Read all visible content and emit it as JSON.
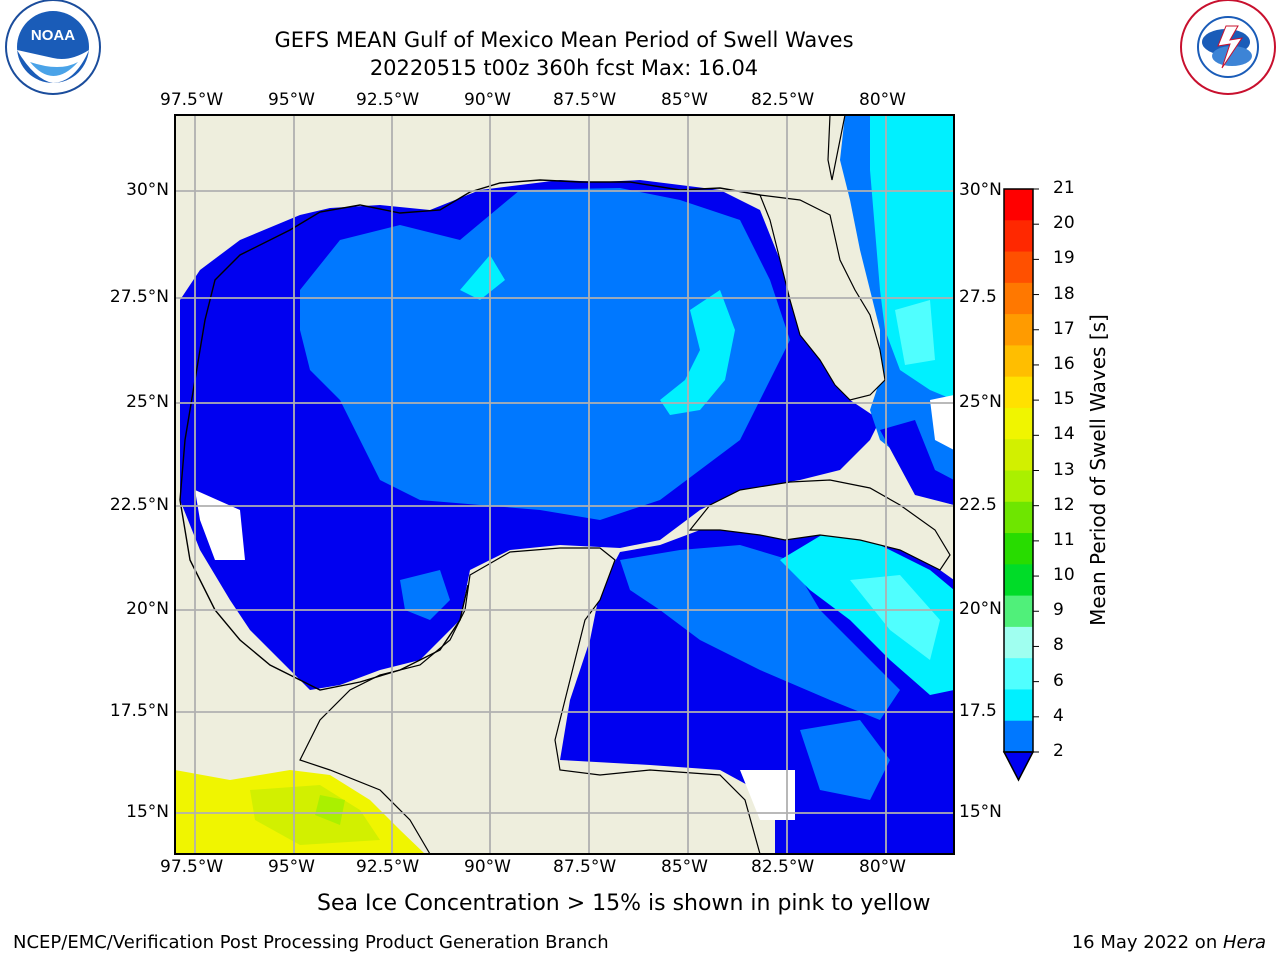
{
  "title": {
    "line1": "GEFS MEAN Gulf of Mexico Mean Period of Swell Waves",
    "line2": "20220515 t00z 360h fcst   Max: 16.04"
  },
  "map": {
    "lon_ticks": [
      "97.5°W",
      "95°W",
      "92.5°W",
      "90°W",
      "87.5°W",
      "85°W",
      "82.5°W",
      "80°W"
    ],
    "lat_ticks_left": [
      "30°N",
      "27.5°N",
      "25°N",
      "22.5°N",
      "20°N",
      "17.5°N",
      "15°N"
    ],
    "lat_ticks_right": [
      "30°N",
      "27.5",
      "25°N",
      "22.5",
      "20°N",
      "17.5",
      "15°N"
    ],
    "colors": {
      "land": "#eeeedd",
      "missing": "#ffffff",
      "grid": "#b0b0b0",
      "coast": "#000000"
    }
  },
  "colorbar": {
    "title": "Mean Period of Swell Waves [s]",
    "labels": [
      "21",
      "20",
      "19",
      "18",
      "17",
      "16",
      "15",
      "14",
      "13",
      "12",
      "11",
      "10",
      "9",
      "8",
      "6",
      "4",
      "2"
    ],
    "colors": [
      "#ff0000",
      "#ff2800",
      "#ff5000",
      "#ff7800",
      "#ff9b00",
      "#ffbe00",
      "#ffe100",
      "#f0f500",
      "#d2f000",
      "#aaf000",
      "#6ee600",
      "#28dc00",
      "#00dc28",
      "#50f07a",
      "#a0fff0",
      "#50ffff",
      "#00f0ff",
      "#0078ff",
      "#0000f0"
    ]
  },
  "notes": {
    "sea_ice": "Sea Ice Concentration > 15% is shown in pink to yellow"
  },
  "footer": {
    "left": "NCEP/EMC/Verification Post Processing Product Generation Branch",
    "right_date": "16 May 2022 on ",
    "right_host": "Hera"
  },
  "logos": {
    "noaa": "NOAA",
    "nws": "NATIONAL WEATHER SERVICE"
  }
}
